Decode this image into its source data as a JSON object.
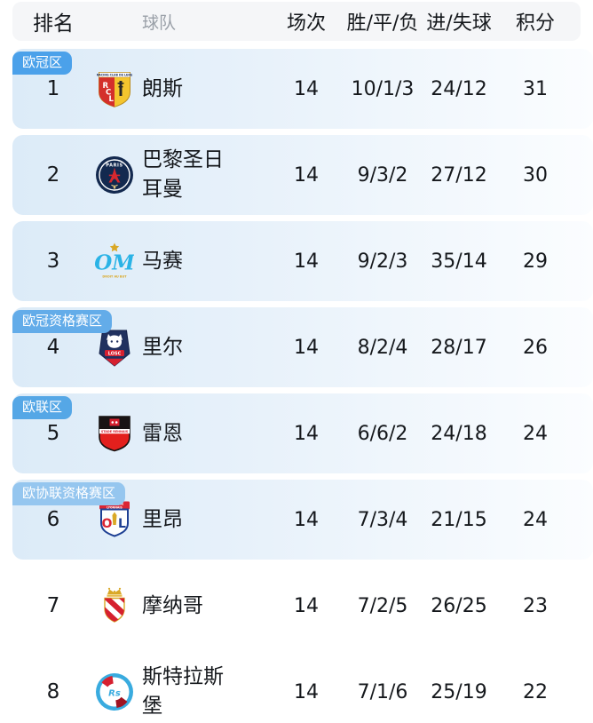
{
  "header": {
    "columns": [
      "排名",
      "球队",
      "场次",
      "胜/平/负",
      "进/失球",
      "积分"
    ]
  },
  "zones": {
    "cl": {
      "label": "欧冠区",
      "color": "#4ba1ea"
    },
    "cl_q": {
      "label": "欧冠资格赛区",
      "color": "#63ace9"
    },
    "el": {
      "label": "欧联区",
      "color": "#55a7e6"
    },
    "conf_q": {
      "label": "欧协联资格赛区",
      "color": "#95c6ef"
    }
  },
  "colors": {
    "header_bg": "#f5f6f8",
    "header_text": "#9aa0a8",
    "body_text": "#15181c",
    "row_tint_start": "#dcebf8",
    "row_tint_end": "#fbfdff"
  },
  "standings": {
    "rows": [
      {
        "rank": "1",
        "team": "朗斯",
        "logo": "lens",
        "matches": "14",
        "wdl": "10/1/3",
        "goals": "24/12",
        "points": "31",
        "zone": "cl",
        "tinted": true
      },
      {
        "rank": "2",
        "team": "巴黎圣日耳曼",
        "logo": "psg",
        "matches": "14",
        "wdl": "9/3/2",
        "goals": "27/12",
        "points": "30",
        "zone": null,
        "tinted": true
      },
      {
        "rank": "3",
        "team": "马赛",
        "logo": "marseille",
        "matches": "14",
        "wdl": "9/2/3",
        "goals": "35/14",
        "points": "29",
        "zone": null,
        "tinted": true
      },
      {
        "rank": "4",
        "team": "里尔",
        "logo": "lille",
        "matches": "14",
        "wdl": "8/2/4",
        "goals": "28/17",
        "points": "26",
        "zone": "cl_q",
        "tinted": true
      },
      {
        "rank": "5",
        "team": "雷恩",
        "logo": "rennes",
        "matches": "14",
        "wdl": "6/6/2",
        "goals": "24/18",
        "points": "24",
        "zone": "el",
        "tinted": true
      },
      {
        "rank": "6",
        "team": "里昂",
        "logo": "lyon",
        "matches": "14",
        "wdl": "7/3/4",
        "goals": "21/15",
        "points": "24",
        "zone": "conf_q",
        "tinted": true
      },
      {
        "rank": "7",
        "team": "摩纳哥",
        "logo": "monaco",
        "matches": "14",
        "wdl": "7/2/5",
        "goals": "26/25",
        "points": "23",
        "zone": null,
        "tinted": false
      },
      {
        "rank": "8",
        "team": "斯特拉斯堡",
        "logo": "strasbourg",
        "matches": "14",
        "wdl": "7/1/6",
        "goals": "25/19",
        "points": "22",
        "zone": null,
        "tinted": false
      }
    ]
  }
}
